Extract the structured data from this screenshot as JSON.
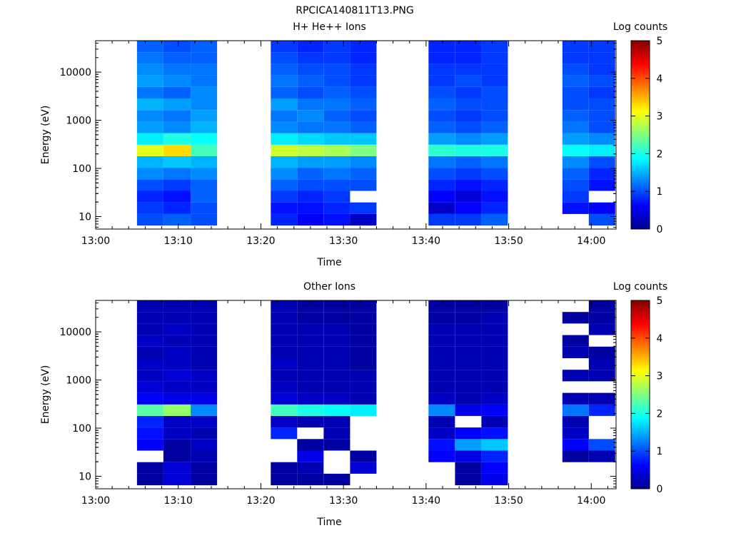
{
  "page_title": "RPCICA140811T13.PNG",
  "chart_data": [
    {
      "type": "heatmap",
      "title": "H+ He++ Ions",
      "colorbar_label": "Log counts",
      "colorbar_ticks": [
        "0",
        "1",
        "2",
        "3",
        "4",
        "5"
      ],
      "clim": [
        0,
        5
      ],
      "xlabel": "Time",
      "ylabel": "Energy (eV)",
      "xlim_minutes": [
        0,
        63
      ],
      "x_ticks": [
        "13:00",
        "13:10",
        "13:20",
        "13:30",
        "13:40",
        "13:50",
        "14:00"
      ],
      "ylim": [
        5.5,
        45000
      ],
      "y_scale": "log",
      "y_ticks": [
        "10",
        "100",
        "1000",
        "10000"
      ],
      "columns": [
        {
          "t0": 5.0,
          "t1": 8.2,
          "profile": [
            1.0,
            0.9,
            0.8,
            1.0,
            1.3,
            1.5,
            3.0,
            1.8,
            1.4,
            1.3,
            1.5,
            1.2,
            1.4,
            1.3,
            1.2,
            1.1
          ]
        },
        {
          "t0": 8.2,
          "t1": 11.5,
          "profile": [
            1.1,
            0.8,
            0.7,
            0.9,
            1.2,
            1.6,
            3.3,
            2.0,
            1.3,
            1.2,
            1.4,
            1.1,
            1.3,
            1.2,
            1.1,
            1.0
          ]
        },
        {
          "t0": 11.5,
          "t1": 14.7,
          "profile": [
            1.0,
            1.0,
            1.1,
            1.1,
            1.3,
            1.5,
            2.2,
            1.9,
            1.5,
            1.4,
            1.3,
            1.3,
            1.2,
            1.2,
            1.1,
            1.1
          ]
        },
        {
          "t0": 21.2,
          "t1": 24.4,
          "profile": [
            0.8,
            0.7,
            0.9,
            1.1,
            1.3,
            1.5,
            2.9,
            1.8,
            1.3,
            1.2,
            1.4,
            1.1,
            1.2,
            1.1,
            1.0,
            0.9
          ]
        },
        {
          "t0": 24.4,
          "t1": 27.6,
          "profile": [
            0.6,
            0.7,
            0.8,
            1.0,
            1.1,
            1.4,
            2.8,
            1.7,
            1.2,
            1.3,
            1.2,
            1.0,
            1.1,
            1.0,
            0.9,
            0.8
          ]
        },
        {
          "t0": 27.6,
          "t1": 30.8,
          "profile": [
            0.7,
            0.8,
            0.9,
            1.0,
            1.2,
            1.4,
            2.7,
            1.6,
            1.2,
            1.1,
            1.2,
            1.1,
            1.0,
            1.0,
            0.9,
            0.9
          ]
        },
        {
          "t0": 30.8,
          "t1": 34.0,
          "profile": [
            0.3,
            0.9,
            -1,
            1.0,
            1.1,
            1.3,
            2.5,
            1.6,
            1.1,
            1.0,
            1.1,
            1.0,
            0.9,
            0.9,
            0.8,
            0.8
          ]
        },
        {
          "t0": 40.3,
          "t1": 43.5,
          "profile": [
            0.9,
            0.3,
            0.6,
            0.8,
            1.0,
            1.2,
            2.1,
            1.4,
            1.1,
            1.0,
            1.1,
            1.0,
            0.9,
            0.9,
            0.8,
            0.8
          ]
        },
        {
          "t0": 43.5,
          "t1": 46.7,
          "profile": [
            0.9,
            0.6,
            0.4,
            0.7,
            0.9,
            1.1,
            2.0,
            1.3,
            1.0,
            0.9,
            1.0,
            0.9,
            1.0,
            0.9,
            0.8,
            0.8
          ]
        },
        {
          "t0": 46.7,
          "t1": 49.9,
          "profile": [
            1.1,
            0.8,
            0.7,
            0.8,
            1.0,
            1.2,
            2.0,
            1.4,
            1.1,
            1.0,
            1.0,
            1.0,
            0.9,
            0.9,
            0.9,
            0.9
          ]
        },
        {
          "t0": 56.5,
          "t1": 59.7,
          "profile": [
            -1,
            0.7,
            0.9,
            1.0,
            1.1,
            1.3,
            1.9,
            1.4,
            1.2,
            1.1,
            1.0,
            1.0,
            1.1,
            1.0,
            0.9,
            0.9
          ]
        },
        {
          "t0": 59.7,
          "t1": 62.9,
          "profile": [
            1.0,
            0.6,
            -1,
            0.7,
            0.8,
            1.0,
            1.8,
            1.3,
            1.0,
            1.0,
            1.0,
            0.9,
            1.0,
            0.9,
            0.9,
            0.9
          ]
        }
      ]
    },
    {
      "type": "heatmap",
      "title": "Other Ions",
      "colorbar_label": "Log counts",
      "colorbar_ticks": [
        "0",
        "1",
        "2",
        "3",
        "4",
        "5"
      ],
      "clim": [
        0,
        5
      ],
      "xlabel": "Time",
      "ylabel": "Energy (eV)",
      "xlim_minutes": [
        0,
        63
      ],
      "x_ticks": [
        "13:00",
        "13:10",
        "13:20",
        "13:30",
        "13:40",
        "13:50",
        "14:00"
      ],
      "ylim": [
        5.5,
        45000
      ],
      "y_scale": "log",
      "y_ticks": [
        "10",
        "100",
        "1000",
        "10000"
      ],
      "columns": [
        {
          "t0": 5.0,
          "t1": 8.2,
          "profile": [
            0.1,
            0.1,
            -1,
            0.6,
            0.7,
            0.8,
            2.3,
            0.6,
            0.4,
            0.3,
            0.3,
            0.2,
            0.3,
            0.2,
            0.2,
            0.2
          ]
        },
        {
          "t0": 8.2,
          "t1": 11.5,
          "profile": [
            0.4,
            0.4,
            0.1,
            0.1,
            0.3,
            0.3,
            2.6,
            0.5,
            0.3,
            0.4,
            0.3,
            0.3,
            0.2,
            0.3,
            0.2,
            0.2
          ]
        },
        {
          "t0": 11.5,
          "t1": 14.7,
          "profile": [
            0.1,
            0.1,
            0.2,
            0.3,
            0.2,
            0.3,
            1.3,
            0.5,
            0.3,
            0.3,
            0.2,
            0.2,
            0.2,
            0.2,
            0.2,
            0.2
          ]
        },
        {
          "t0": 21.2,
          "t1": 24.4,
          "profile": [
            0.1,
            0.1,
            -1,
            -1,
            0.8,
            0.3,
            2.2,
            0.4,
            0.3,
            0.2,
            0.3,
            0.2,
            0.2,
            0.2,
            0.2,
            0.2
          ]
        },
        {
          "t0": 24.4,
          "t1": 27.6,
          "profile": [
            0.1,
            0.2,
            0.5,
            0.1,
            -1,
            0.2,
            2.0,
            0.3,
            0.2,
            0.2,
            0.2,
            0.2,
            0.2,
            0.2,
            0.1,
            0.1
          ]
        },
        {
          "t0": 27.6,
          "t1": 30.8,
          "profile": [
            0.1,
            -1,
            -1,
            0.1,
            0.2,
            0.2,
            1.9,
            0.3,
            0.2,
            0.2,
            0.2,
            0.2,
            0.2,
            0.2,
            0.1,
            0.1
          ]
        },
        {
          "t0": 30.8,
          "t1": 34.0,
          "profile": [
            -1,
            0.4,
            0.1,
            -1,
            -1,
            -1,
            1.8,
            0.2,
            0.2,
            0.2,
            0.1,
            0.1,
            0.1,
            0.1,
            0.1,
            0.1
          ]
        },
        {
          "t0": 40.3,
          "t1": 43.5,
          "profile": [
            -1,
            -1,
            0.6,
            0.7,
            0.3,
            0.2,
            1.3,
            0.3,
            0.2,
            0.2,
            0.2,
            0.2,
            0.2,
            0.2,
            0.1,
            0.1
          ]
        },
        {
          "t0": 43.5,
          "t1": 46.7,
          "profile": [
            0.1,
            0.1,
            0.5,
            1.4,
            0.6,
            -1,
            0.5,
            0.2,
            0.2,
            0.2,
            0.2,
            0.2,
            0.2,
            0.2,
            0.1,
            0.1
          ]
        },
        {
          "t0": 46.7,
          "t1": 49.9,
          "profile": [
            0.5,
            0.6,
            0.8,
            1.6,
            0.7,
            0.2,
            0.6,
            0.3,
            0.2,
            0.2,
            0.2,
            0.2,
            0.2,
            0.2,
            0.2,
            0.1
          ]
        },
        {
          "t0": 56.5,
          "t1": 59.7,
          "profile": [
            -1,
            -1,
            0.1,
            0.6,
            0.3,
            0.2,
            1.2,
            0.2,
            -1,
            0.2,
            -1,
            0.2,
            0.1,
            -1,
            0.1,
            -1
          ]
        },
        {
          "t0": 59.7,
          "t1": 62.9,
          "profile": [
            -1,
            -1,
            0.2,
            1.0,
            -1,
            -1,
            0.8,
            0.2,
            -1,
            0.2,
            0.2,
            0.1,
            -1,
            0.2,
            0.1,
            0.1
          ]
        }
      ]
    }
  ]
}
